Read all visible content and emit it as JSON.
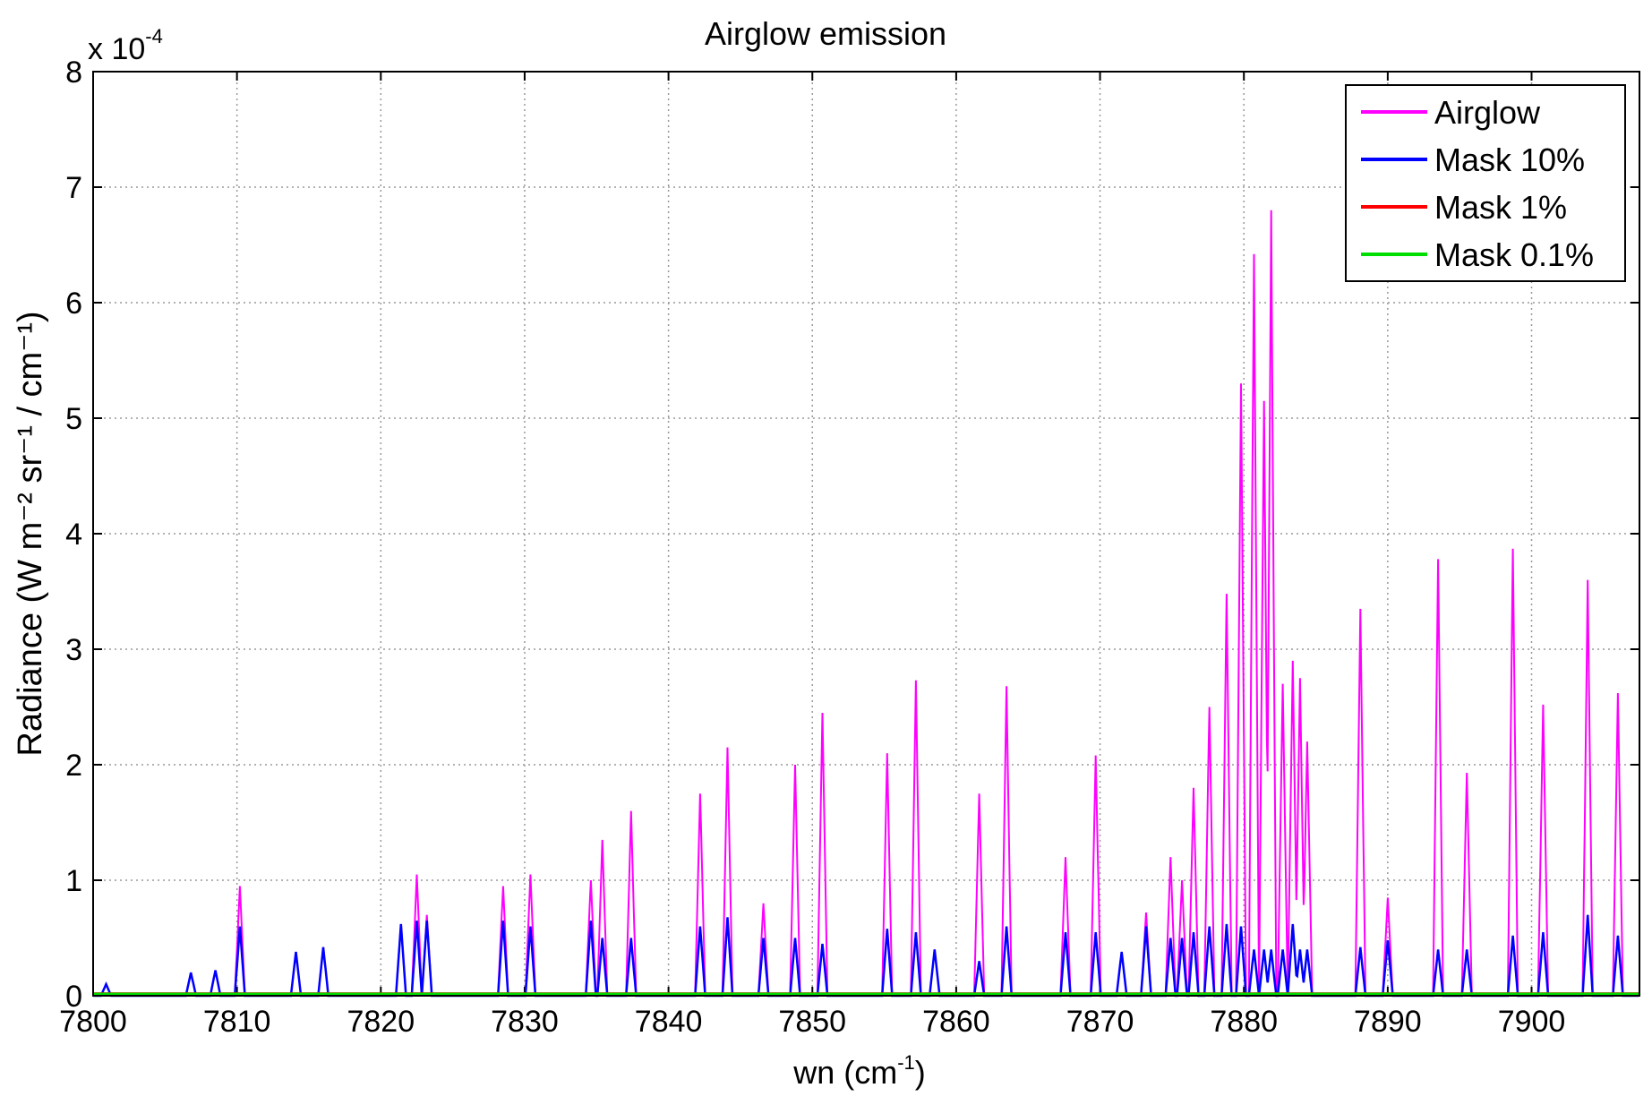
{
  "chart_data": {
    "type": "line",
    "title": "Airglow emission",
    "xlabel": "wn (cm",
    "xlabel_sup": "-1",
    "xlabel_end": ")",
    "ylabel": "Radiance (W m⁻² sr⁻¹ / cm⁻¹)",
    "y_multiplier": "x 10",
    "y_multiplier_exp": "-4",
    "xlim": [
      7800,
      7907.5
    ],
    "ylim": [
      0,
      8
    ],
    "xticks": [
      7800,
      7810,
      7820,
      7830,
      7840,
      7850,
      7860,
      7870,
      7880,
      7890,
      7900
    ],
    "yticks": [
      0,
      1,
      2,
      3,
      4,
      5,
      6,
      7,
      8
    ],
    "grid": true,
    "legend_position": "top-right",
    "series": [
      {
        "name": "Airglow",
        "color": "#ff00ff"
      },
      {
        "name": "Mask 10%",
        "color": "#0000ff"
      },
      {
        "name": "Mask 1%",
        "color": "#ff0000"
      },
      {
        "name": "Mask 0.1%",
        "color": "#00dd00"
      }
    ],
    "peaks_wn_airglow_mask10": [
      [
        7800.9,
        0.1,
        0.1
      ],
      [
        7806.8,
        0.2,
        0.2
      ],
      [
        7808.5,
        0.22,
        0.22
      ],
      [
        7810.2,
        0.95,
        0.6
      ],
      [
        7814.1,
        0.38,
        0.38
      ],
      [
        7816.0,
        0.42,
        0.42
      ],
      [
        7821.4,
        0.62,
        0.62
      ],
      [
        7822.5,
        1.05,
        0.65
      ],
      [
        7823.2,
        0.7,
        0.65
      ],
      [
        7828.5,
        0.95,
        0.65
      ],
      [
        7830.4,
        1.05,
        0.6
      ],
      [
        7834.6,
        1.0,
        0.65
      ],
      [
        7835.4,
        1.35,
        0.5
      ],
      [
        7837.4,
        1.6,
        0.5
      ],
      [
        7842.2,
        1.75,
        0.6
      ],
      [
        7844.1,
        2.15,
        0.68
      ],
      [
        7846.6,
        0.8,
        0.5
      ],
      [
        7848.8,
        2.0,
        0.5
      ],
      [
        7850.7,
        2.45,
        0.45
      ],
      [
        7855.2,
        2.1,
        0.58
      ],
      [
        7857.2,
        2.73,
        0.55
      ],
      [
        7858.5,
        0.4,
        0.4
      ],
      [
        7861.6,
        1.75,
        0.3
      ],
      [
        7863.5,
        2.68,
        0.6
      ],
      [
        7867.6,
        1.2,
        0.55
      ],
      [
        7869.7,
        2.08,
        0.55
      ],
      [
        7871.5,
        0.38,
        0.38
      ],
      [
        7873.2,
        0.72,
        0.6
      ],
      [
        7874.9,
        1.2,
        0.5
      ],
      [
        7875.7,
        1.0,
        0.5
      ],
      [
        7876.5,
        1.8,
        0.55
      ],
      [
        7877.6,
        2.5,
        0.6
      ],
      [
        7878.8,
        3.48,
        0.62
      ],
      [
        7879.8,
        5.3,
        0.6
      ],
      [
        7880.7,
        6.42,
        0.4
      ],
      [
        7881.4,
        5.15,
        0.4
      ],
      [
        7881.9,
        6.8,
        0.4
      ],
      [
        7882.7,
        2.7,
        0.4
      ],
      [
        7883.4,
        2.9,
        0.62
      ],
      [
        7883.9,
        2.75,
        0.4
      ],
      [
        7884.4,
        2.2,
        0.4
      ],
      [
        7888.1,
        3.35,
        0.42
      ],
      [
        7890.0,
        0.85,
        0.48
      ],
      [
        7893.5,
        3.78,
        0.4
      ],
      [
        7895.5,
        1.93,
        0.4
      ],
      [
        7898.7,
        3.87,
        0.52
      ],
      [
        7900.8,
        2.52,
        0.55
      ],
      [
        7903.9,
        3.6,
        0.7
      ],
      [
        7906.0,
        2.62,
        0.52
      ]
    ]
  }
}
